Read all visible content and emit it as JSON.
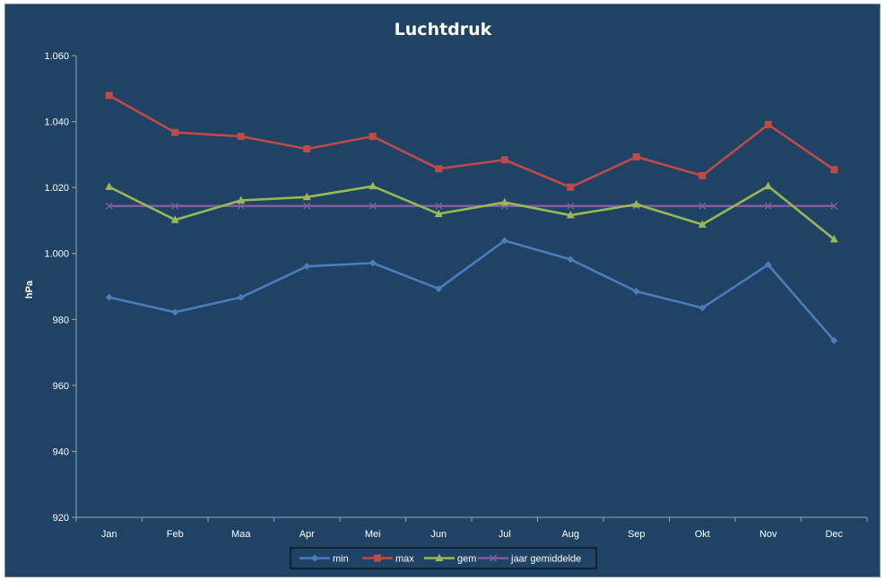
{
  "chart_data": {
    "type": "line",
    "title": "Luchtdruk",
    "ylabel": "hPa",
    "xlabel": "",
    "categories": [
      "Jan",
      "Feb",
      "Maa",
      "Apr",
      "Mei",
      "Jun",
      "Jul",
      "Aug",
      "Sep",
      "Okt",
      "Nov",
      "Dec"
    ],
    "ylim": [
      920,
      1060
    ],
    "yticks": [
      920,
      940,
      960,
      980,
      1000,
      1020,
      1040,
      1060
    ],
    "ytick_labels": [
      "920",
      "940",
      "960",
      "980",
      "1.000",
      "1.020",
      "1.040",
      "1.060"
    ],
    "grid": false,
    "legend_position": "bottom",
    "series": [
      {
        "name": "min",
        "color": "#4a7ebb",
        "marker": "diamond",
        "values": [
          986.7,
          982.2,
          986.7,
          996.1,
          997.1,
          989.3,
          1003.9,
          998.2,
          988.5,
          983.5,
          996.6,
          973.6
        ]
      },
      {
        "name": "max",
        "color": "#be4b48",
        "marker": "square",
        "values": [
          1047.9,
          1036.7,
          1035.5,
          1031.7,
          1035.5,
          1025.7,
          1028.4,
          1020.1,
          1029.3,
          1023.6,
          1039.1,
          1025.4
        ]
      },
      {
        "name": "gem",
        "color": "#98b954",
        "marker": "triangle",
        "values": [
          1020.2,
          1010.2,
          1016.1,
          1017.1,
          1020.4,
          1012.0,
          1015.5,
          1011.6,
          1014.9,
          1008.8,
          1020.4,
          1004.3
        ]
      },
      {
        "name": "jaar gemiddelde",
        "color": "#7d60a0",
        "marker": "x",
        "values": [
          1014.4,
          1014.4,
          1014.4,
          1014.4,
          1014.4,
          1014.4,
          1014.4,
          1014.4,
          1014.4,
          1014.4,
          1014.4,
          1014.4
        ]
      }
    ]
  }
}
